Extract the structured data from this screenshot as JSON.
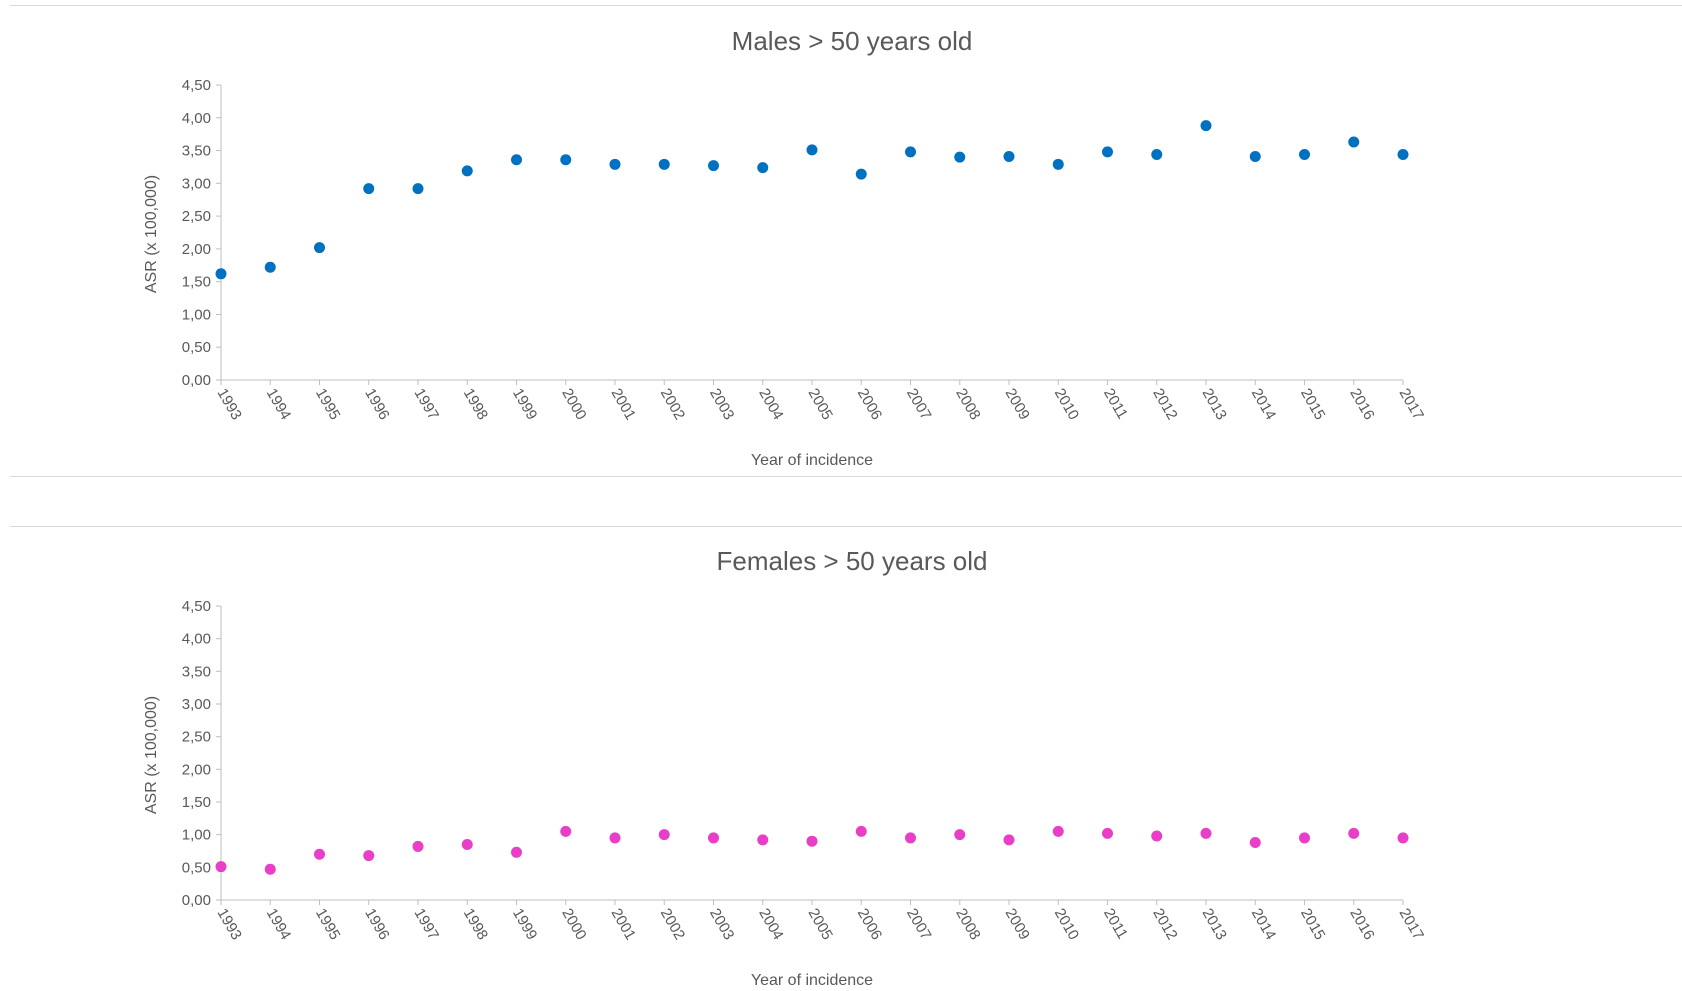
{
  "chart_data": [
    {
      "type": "scatter",
      "title": "Males > 50 years old",
      "xlabel": "Year of incidence",
      "ylabel": "ASR (x 100,000)",
      "ylim": [
        0,
        4.5
      ],
      "yticks": [
        "0,00",
        "0,50",
        "1,00",
        "1,50",
        "2,00",
        "2,50",
        "3,00",
        "3,50",
        "4,00",
        "4,50"
      ],
      "x": [
        "1993",
        "1994",
        "1995",
        "1996",
        "1997",
        "1998",
        "1999",
        "2000",
        "2001",
        "2002",
        "2003",
        "2004",
        "2005",
        "2006",
        "2007",
        "2008",
        "2009",
        "2010",
        "2011",
        "2012",
        "2013",
        "2014",
        "2015",
        "2016",
        "2017"
      ],
      "values": [
        1.62,
        1.72,
        2.02,
        2.92,
        2.92,
        3.19,
        3.36,
        3.36,
        3.29,
        3.29,
        3.27,
        3.24,
        3.51,
        3.14,
        3.48,
        3.4,
        3.41,
        3.29,
        3.48,
        3.44,
        3.88,
        3.41,
        3.44,
        3.63,
        3.44
      ],
      "color": "#0070C0",
      "grid": false
    },
    {
      "type": "scatter",
      "title": "Females > 50 years old",
      "xlabel": "Year of incidence",
      "ylabel": "ASR (x 100,000)",
      "ylim": [
        0,
        4.5
      ],
      "yticks": [
        "0,00",
        "0,50",
        "1,00",
        "1,50",
        "2,00",
        "2,50",
        "3,00",
        "3,50",
        "4,00",
        "4,50"
      ],
      "x": [
        "1993",
        "1994",
        "1995",
        "1996",
        "1997",
        "1998",
        "1999",
        "2000",
        "2001",
        "2002",
        "2003",
        "2004",
        "2005",
        "2006",
        "2007",
        "2008",
        "2009",
        "2010",
        "2011",
        "2012",
        "2013",
        "2014",
        "2015",
        "2016",
        "2017"
      ],
      "values": [
        0.51,
        0.47,
        0.7,
        0.68,
        0.82,
        0.85,
        0.73,
        1.05,
        0.95,
        1.0,
        0.95,
        0.92,
        0.9,
        1.05,
        0.95,
        1.0,
        0.92,
        1.05,
        1.02,
        0.98,
        1.02,
        0.88,
        0.95,
        1.02,
        0.95
      ],
      "color": "#E83EC8",
      "grid": false
    }
  ]
}
